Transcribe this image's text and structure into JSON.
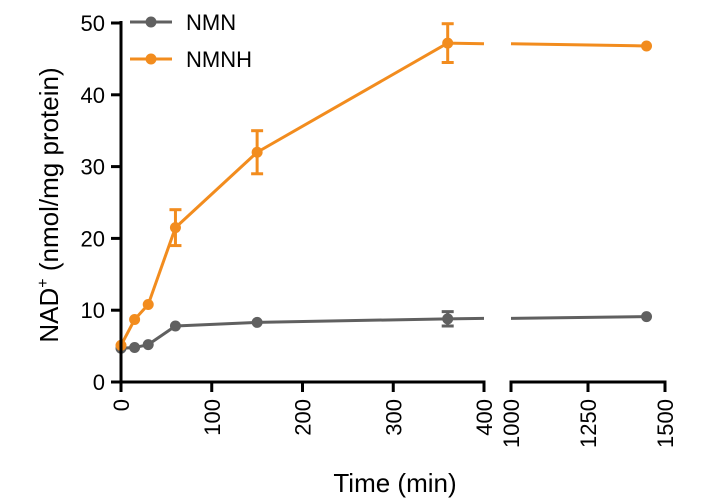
{
  "chart_data": {
    "type": "line",
    "xlabel": "Time (min)",
    "ylabel_main": "NAD",
    "ylabel_sup": "+",
    "ylabel_rest": " (nmol/mg protein)",
    "ylim": [
      0,
      50
    ],
    "yticks": [
      0,
      10,
      20,
      30,
      40,
      50
    ],
    "x_segments": [
      {
        "xlim": [
          0,
          400
        ],
        "xticks": [
          0,
          100,
          200,
          300,
          400
        ]
      },
      {
        "xlim": [
          1000,
          1500
        ],
        "xticks": [
          1000,
          1250,
          1500
        ]
      }
    ],
    "legend_position": "top-left",
    "series": [
      {
        "name": "NMN",
        "color": "#606060",
        "x": [
          0,
          15,
          30,
          60,
          150,
          360,
          1440
        ],
        "y": [
          4.7,
          4.8,
          5.2,
          7.8,
          8.3,
          8.8,
          9.1
        ],
        "err": [
          0,
          0,
          0,
          0,
          0,
          1.0,
          0
        ]
      },
      {
        "name": "NMNH",
        "color": "#F28C1E",
        "x": [
          0,
          15,
          30,
          60,
          150,
          360,
          1440
        ],
        "y": [
          5.1,
          8.7,
          10.8,
          21.5,
          32.0,
          47.2,
          46.8
        ],
        "err": [
          0,
          0,
          0,
          2.5,
          3.0,
          2.7,
          0
        ]
      }
    ]
  }
}
